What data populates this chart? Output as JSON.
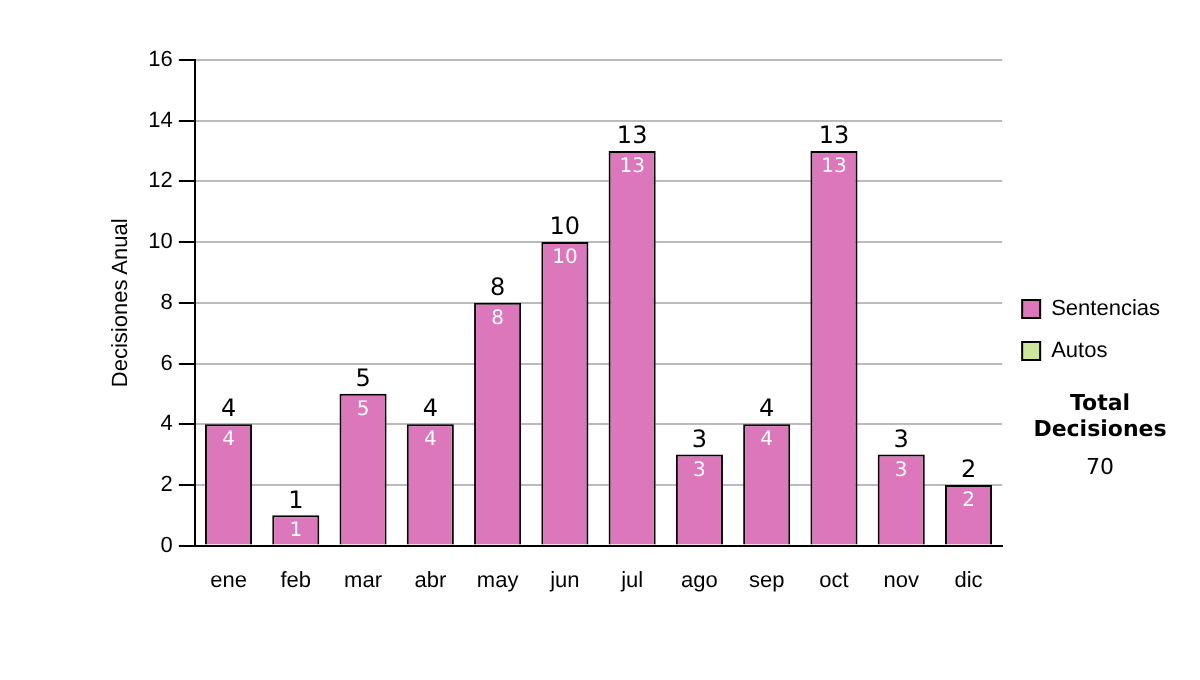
{
  "chart_data": {
    "type": "bar",
    "ylabel": "Decisiones Anual",
    "categories": [
      "ene",
      "feb",
      "mar",
      "abr",
      "may",
      "jun",
      "jul",
      "ago",
      "sep",
      "oct",
      "nov",
      "dic"
    ],
    "series": [
      {
        "name": "Sentencias",
        "color": "#dd77bb",
        "values": [
          4,
          1,
          5,
          4,
          8,
          10,
          13,
          3,
          4,
          13,
          3,
          2
        ],
        "value_labels": [
          "4",
          "1",
          "5",
          "4",
          "8",
          "10",
          "13",
          "3",
          "4",
          "13",
          "3",
          "2"
        ]
      },
      {
        "name": "Autos",
        "color": "#cce69a",
        "values": [
          0,
          0,
          0,
          0,
          0,
          0,
          0,
          0,
          0,
          0,
          0,
          0
        ]
      }
    ],
    "stacked": true,
    "totals": [
      "4",
      "1",
      "5",
      "4",
      "8",
      "10",
      "13",
      "3",
      "4",
      "13",
      "3",
      "2"
    ],
    "ylim": [
      0,
      16
    ],
    "yticks": [
      0,
      2,
      4,
      6,
      8,
      10,
      12,
      14,
      16
    ],
    "grid": "y",
    "legend": "right",
    "annotations": [
      "Total Decisiones",
      "70"
    ]
  }
}
